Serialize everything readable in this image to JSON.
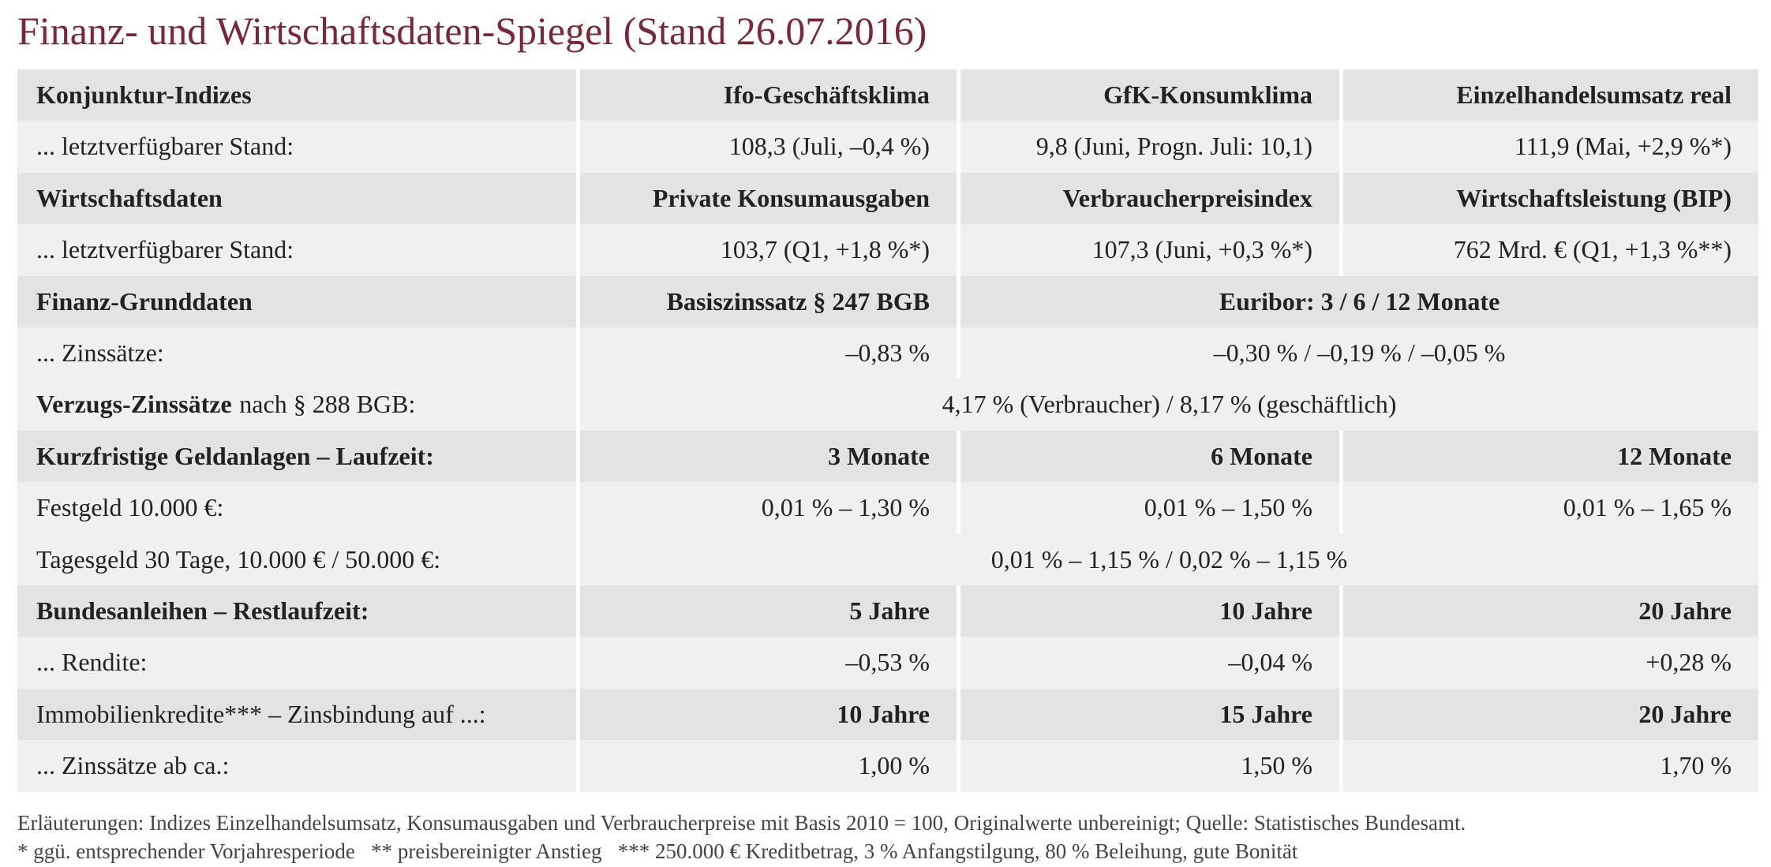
{
  "header": {
    "title": "Finanz- und Wirtschaftsdaten-Spiegel (Stand 26.07.2016)"
  },
  "table": {
    "rows": [
      [
        "Konjunktur-Indizes",
        "Ifo-Geschäftsklima",
        "GfK-Konsumklima",
        "Einzelhandelsumsatz real"
      ],
      [
        "... letztverfügbarer Stand:",
        "108,3 (Juli, –0,4 %)",
        "9,8 (Juni, Progn. Juli: 10,1)",
        "111,9 (Mai, +2,9 %*)"
      ],
      [
        "Wirtschaftsdaten",
        "Private Konsumausgaben",
        "Verbraucherpreisindex",
        "Wirtschaftsleistung (BIP)"
      ],
      [
        "... letztverfügbarer Stand:",
        "103,7 (Q1, +1,8 %*)",
        "107,3 (Juni, +0,3 %*)",
        "762 Mrd. € (Q1, +1,3 %**)"
      ],
      [
        "Finanz-Grunddaten",
        "Basiszinssatz § 247 BGB",
        "Euribor: 3 / 6 / 12 Monate"
      ],
      [
        "... Zinssätze:",
        "–0,83 %",
        "–0,30 % / –0,19 % / –0,05 %"
      ],
      [
        [
          "Verzugs-Zinssätze",
          "nach § 288 BGB:"
        ],
        "4,17 % (Verbraucher) / 8,17 % (geschäftlich)"
      ],
      [
        "Kurzfristige Geldanlagen – Laufzeit:",
        "3 Monate",
        "6 Monate",
        "12 Monate"
      ],
      [
        "Festgeld 10.000 €:",
        "0,01 % – 1,30 %",
        "0,01 % – 1,50 %",
        "0,01 % – 1,65 %"
      ],
      [
        "Tagesgeld 30 Tage, 10.000 € / 50.000 €:",
        "0,01 % – 1,15 % / 0,02 % – 1,15 %"
      ],
      [
        "Bundesanleihen – Restlaufzeit:",
        "5 Jahre",
        "10 Jahre",
        "20 Jahre"
      ],
      [
        "... Rendite:",
        "–0,53 %",
        "–0,04 %",
        "+0,28 %"
      ],
      [
        "Immobilienkredite*** – Zinsbindung auf ...:",
        "10 Jahre",
        "15 Jahre",
        "20 Jahre"
      ],
      [
        "... Zinssätze ab ca.:",
        "1,00 %",
        "1,50 %",
        "1,70 %"
      ]
    ]
  },
  "footer": {
    "notes": [
      "Erläuterungen: Indizes Einzelhandelsumsatz, Konsumausgaben und Verbraucherpreise mit Basis 2010 = 100, Originalwerte unbereinigt; Quelle: Statistisches Bundesamt.",
      "* ggü. entsprechender Vorjahresperiode   ** preisbereinigter Anstieg   *** 250.000 € Kreditbetrag, 3 % Anfangstilgung, 80 % Beleihung, gute Bonität"
    ]
  }
}
